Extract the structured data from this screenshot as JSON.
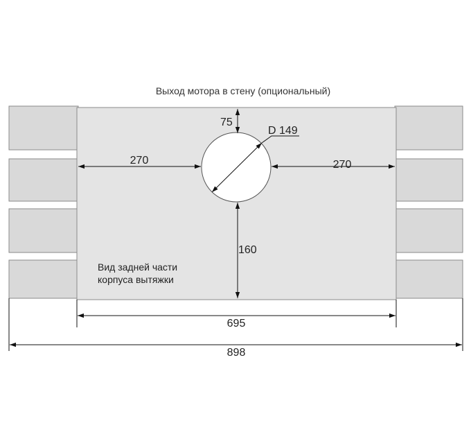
{
  "title": "Выход мотора в стену (опциональный)",
  "note_line1": "Вид задней части",
  "note_line2": "корпуса вытяжки",
  "dimensions": {
    "diameter": "D 149",
    "top_offset": "75",
    "left_offset": "270",
    "right_offset": "270",
    "bottom_offset": "160",
    "body_width": "695",
    "total_width": "898"
  },
  "colors": {
    "housing": "#e4e4e4",
    "brick": "#d9d9d9",
    "outline": "#8a8a8a",
    "dim_line": "#111111",
    "hole": "#ffffff"
  }
}
